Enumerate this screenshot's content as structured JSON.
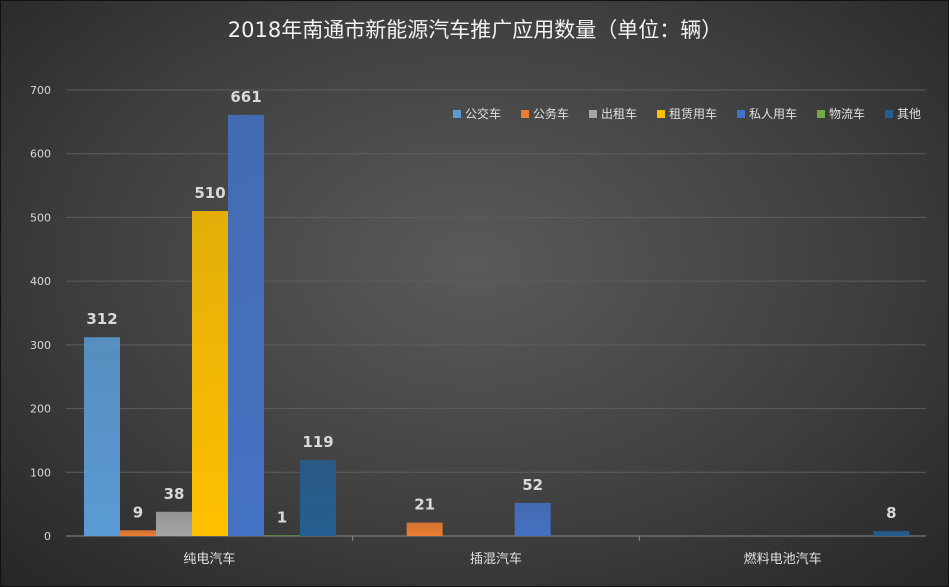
{
  "chart_data": {
    "type": "bar",
    "title": "2018年南通市新能源汽车推广应用数量（单位：辆）",
    "categories": [
      "纯电汽车",
      "插混汽车",
      "燃料电池汽车"
    ],
    "ylim": [
      0,
      700
    ],
    "yticks": [
      0,
      100,
      200,
      300,
      400,
      500,
      600,
      700
    ],
    "grid": true,
    "legend_position": "top-right",
    "series": [
      {
        "name": "公交车",
        "color": "#5b9bd5",
        "values": [
          312,
          null,
          null
        ]
      },
      {
        "name": "公务车",
        "color": "#ed7d31",
        "values": [
          9,
          21,
          null
        ]
      },
      {
        "name": "出租车",
        "color": "#a5a5a5",
        "values": [
          38,
          null,
          null
        ]
      },
      {
        "name": "租赁用车",
        "color": "#ffc000",
        "values": [
          510,
          null,
          null
        ]
      },
      {
        "name": "私人用车",
        "color": "#4472c4",
        "values": [
          661,
          52,
          null
        ]
      },
      {
        "name": "物流车",
        "color": "#70ad47",
        "values": [
          1,
          null,
          null
        ]
      },
      {
        "name": "其他",
        "color": "#255e91",
        "values": [
          119,
          null,
          8
        ]
      }
    ]
  }
}
